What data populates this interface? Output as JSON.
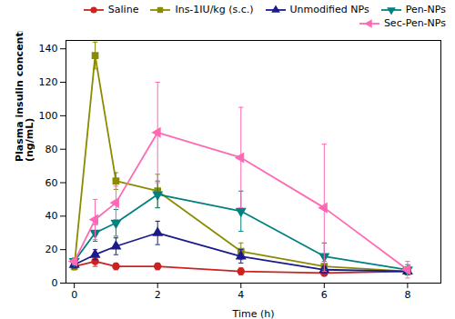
{
  "chart_data": {
    "type": "line",
    "x": [
      0,
      0.5,
      1,
      2,
      4,
      6,
      8
    ],
    "series": [
      {
        "name": "Saline",
        "color": "#cc2222",
        "marker": "circle",
        "values": [
          10,
          13,
          10,
          10,
          7,
          6,
          7
        ],
        "yerr": [
          2,
          3,
          2,
          2,
          2,
          1,
          1
        ]
      },
      {
        "name": "Ins-1IU/kg (s.c.)",
        "color": "#8b8b00",
        "marker": "square",
        "values": [
          10,
          136,
          61,
          55,
          19,
          10,
          7
        ],
        "yerr": [
          2,
          8,
          5,
          10,
          5,
          3,
          2
        ]
      },
      {
        "name": "Unmodified NPs",
        "color": "#1a1a8c",
        "marker": "triangle-up",
        "values": [
          11,
          17,
          22,
          30,
          16,
          8,
          7
        ],
        "yerr": [
          2,
          3,
          5,
          7,
          4,
          2,
          2
        ]
      },
      {
        "name": "Pen-NPs",
        "color": "#008080",
        "marker": "triangle-down",
        "values": [
          13,
          30,
          36,
          53,
          43,
          16,
          8
        ],
        "yerr": [
          2,
          5,
          8,
          8,
          12,
          8,
          3
        ]
      },
      {
        "name": "Sec-Pen-NPs",
        "color": "#ff69b4",
        "marker": "triangle-left",
        "values": [
          13,
          38,
          48,
          90,
          75,
          45,
          8
        ],
        "yerr": [
          2,
          12,
          10,
          30,
          30,
          38,
          5
        ]
      }
    ],
    "xlabel": "Time (h)",
    "ylabel": "Plasma insulin concentration\n(ng/mL)",
    "xlim": [
      -0.2,
      8.8
    ],
    "ylim": [
      0,
      145
    ],
    "xticks": [
      0,
      2,
      4,
      6,
      8
    ],
    "yticks": [
      0,
      20,
      40,
      60,
      80,
      100,
      120,
      140
    ],
    "grid": false,
    "legend": "upper right"
  }
}
